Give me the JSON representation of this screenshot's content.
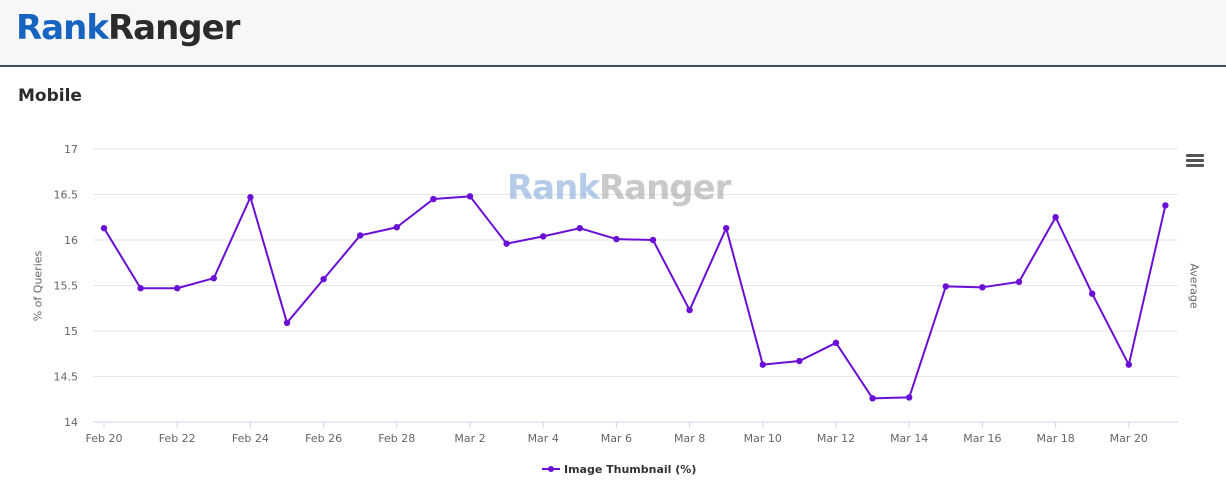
{
  "brand": {
    "rank": "Rank",
    "ranger": "Ranger"
  },
  "section_title": "Mobile",
  "colors": {
    "series": "#6a0fd6",
    "brand_blue": "#1664c0",
    "brand_dark": "#2b2b2b"
  },
  "icons": {
    "menu": "hamburger-menu-icon"
  },
  "chart_data": {
    "type": "line",
    "xlabel": "",
    "ylabel": "% of Queries",
    "y2label": "Average",
    "ylim": [
      14,
      17
    ],
    "yticks": [
      "14",
      "14.5",
      "15",
      "15.5",
      "16",
      "16.5",
      "17"
    ],
    "grid": true,
    "legend_position": "bottom-center",
    "xtick_labels": [
      "Feb 20",
      "Feb 22",
      "Feb 24",
      "Feb 26",
      "Feb 28",
      "Mar 2",
      "Mar 4",
      "Mar 6",
      "Mar 8",
      "Mar 10",
      "Mar 12",
      "Mar 14",
      "Mar 16",
      "Mar 18",
      "Mar 20"
    ],
    "x": [
      "Feb 20",
      "Feb 21",
      "Feb 22",
      "Feb 23",
      "Feb 24",
      "Feb 25",
      "Feb 26",
      "Feb 27",
      "Feb 28",
      "Mar 1",
      "Mar 2",
      "Mar 3",
      "Mar 4",
      "Mar 5",
      "Mar 6",
      "Mar 7",
      "Mar 8",
      "Mar 9",
      "Mar 10",
      "Mar 11",
      "Mar 12",
      "Mar 13",
      "Mar 14",
      "Mar 15",
      "Mar 16",
      "Mar 17",
      "Mar 18",
      "Mar 19",
      "Mar 20",
      "Mar 21"
    ],
    "series": [
      {
        "name": "Image Thumbnail (%)",
        "values": [
          16.13,
          15.47,
          15.47,
          15.58,
          16.47,
          15.09,
          15.57,
          16.05,
          16.14,
          16.45,
          16.48,
          15.96,
          16.04,
          16.13,
          16.01,
          16.0,
          15.23,
          16.13,
          14.63,
          14.67,
          14.87,
          14.26,
          14.27,
          15.49,
          15.48,
          15.54,
          16.25,
          15.41,
          14.63,
          16.38
        ]
      }
    ]
  }
}
